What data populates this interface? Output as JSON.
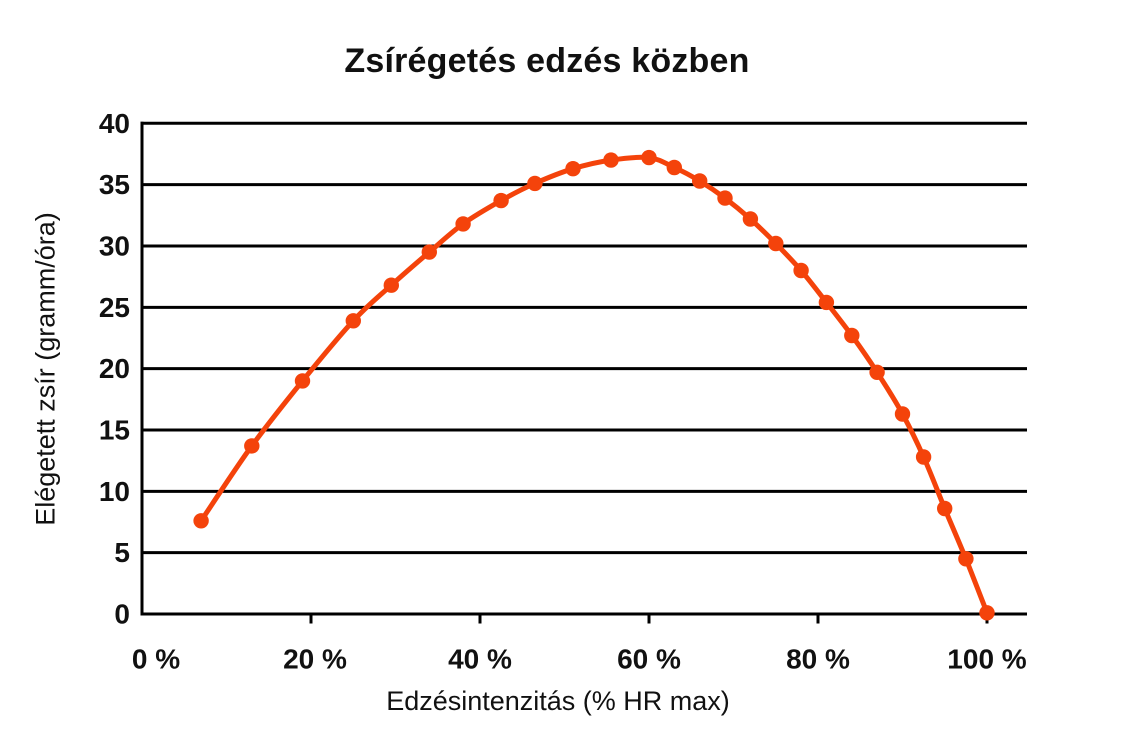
{
  "figure": {
    "background": "#ffffff"
  },
  "chart_data": {
    "type": "line",
    "title": "Zsírégetés edzés közben",
    "xlabel": "Edzésintenzitás (% HR max)",
    "ylabel": "Elégetett zsír (gramm/óra)",
    "x_tick_labels": [
      "0 %",
      "20 %",
      "40 %",
      "60 %",
      "80 %",
      "100 %"
    ],
    "x_tick_values": [
      0,
      20,
      40,
      60,
      80,
      100
    ],
    "y_ticks": [
      0,
      5,
      10,
      15,
      20,
      25,
      30,
      35,
      40
    ],
    "xlim": [
      0,
      104.7
    ],
    "ylim": [
      0,
      40
    ],
    "grid": "horizontal-only",
    "legend": "none",
    "colors": {
      "line": "#F4430B",
      "marker": "#F4430B",
      "grid": "#000000",
      "axis": "#000000",
      "text": "#111111"
    },
    "series": [
      {
        "name": "Elégetett zsír (gramm/óra)",
        "marker": "circle",
        "points": [
          [
            7,
            7.6
          ],
          [
            13,
            13.7
          ],
          [
            19,
            19.0
          ],
          [
            25,
            23.9
          ],
          [
            29.5,
            26.8
          ],
          [
            34,
            29.5
          ],
          [
            38,
            31.8
          ],
          [
            42.5,
            33.7
          ],
          [
            46.5,
            35.1
          ],
          [
            51,
            36.3
          ],
          [
            55.5,
            37.0
          ],
          [
            60,
            37.2
          ],
          [
            63,
            36.4
          ],
          [
            66,
            35.3
          ],
          [
            69,
            33.9
          ],
          [
            72,
            32.2
          ],
          [
            75,
            30.2
          ],
          [
            78,
            28.0
          ],
          [
            81,
            25.4
          ],
          [
            84,
            22.7
          ],
          [
            87,
            19.7
          ],
          [
            90,
            16.3
          ],
          [
            92.5,
            12.8
          ],
          [
            95,
            8.6
          ],
          [
            97.5,
            4.5
          ],
          [
            100,
            0.1
          ]
        ]
      }
    ]
  }
}
